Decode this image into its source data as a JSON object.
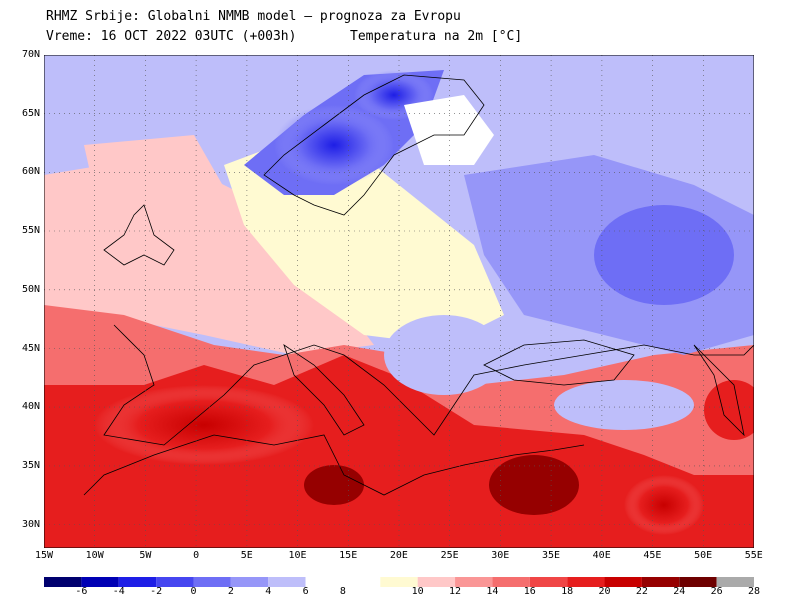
{
  "header": {
    "line1": "RHMZ Srbije: Globalni NMMB model — prognoza za Evropu",
    "line2_left": "Vreme: 16 OCT 2022 03UTC (+003h)",
    "line2_right": "Temperatura na 2m [°C]"
  },
  "map": {
    "lon_range": [
      -15,
      55
    ],
    "lat_range": [
      28,
      70
    ],
    "lat_labels": [
      "70N",
      "65N",
      "60N",
      "55N",
      "50N",
      "45N",
      "40N",
      "35N",
      "30N"
    ],
    "lon_labels": [
      "15W",
      "10W",
      "5W",
      "0",
      "5E",
      "10E",
      "15E",
      "20E",
      "25E",
      "30E",
      "35E",
      "40E",
      "45E",
      "50E",
      "55E"
    ]
  },
  "colorbar": {
    "labels": [
      "-6",
      "-4",
      "-2",
      "0",
      "2",
      "4",
      "6",
      "8",
      "10",
      "12",
      "14",
      "16",
      "18",
      "20",
      "22",
      "24",
      "26",
      "28"
    ],
    "colors": [
      "#00006e",
      "#0000b4",
      "#1e1ee6",
      "#4646f0",
      "#6e6ef5",
      "#9696f8",
      "#bebefa",
      "#ffffff",
      "#fffad2",
      "#ffc8c8",
      "#fa9696",
      "#f56e6e",
      "#f04646",
      "#e61e1e",
      "#c80000",
      "#960000",
      "#6e0000",
      "#aaaaaa"
    ]
  }
}
